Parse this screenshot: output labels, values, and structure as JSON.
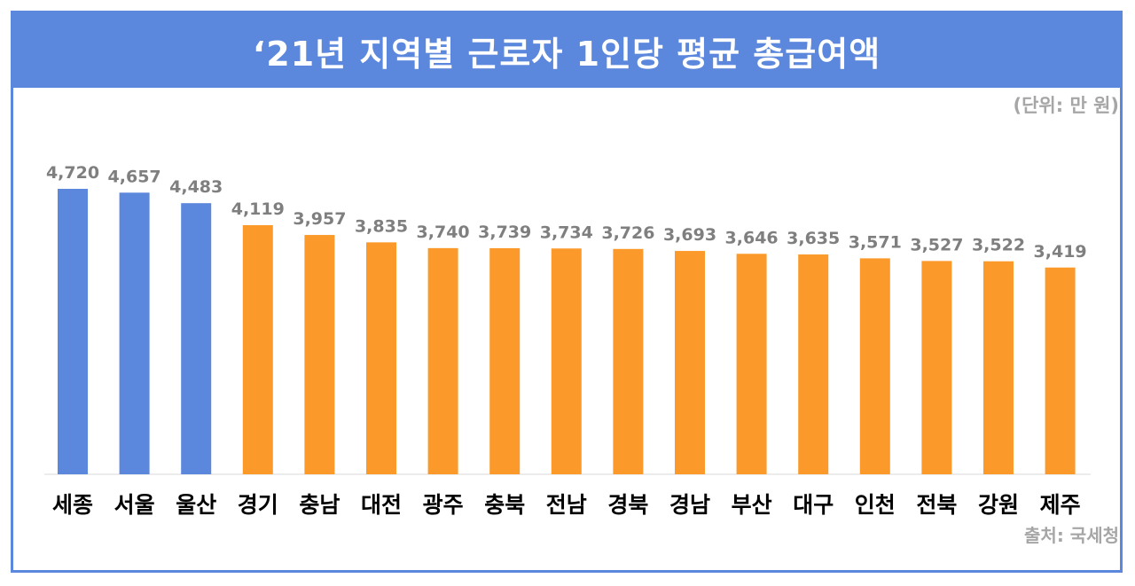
{
  "title": "‘21년 지역별 근로자 1인당 평균 총급여액",
  "unit_note": "(단위: 만 원)",
  "source_note": "출처: 국세청",
  "colors": {
    "header": "#5b87dd",
    "top_bars": "#5b87dd",
    "other_bars": "#fb9a2a",
    "value_text": "#7f7f7f"
  },
  "chart_data": {
    "type": "bar",
    "title": "‘21년 지역별 근로자 1인당 평균 총급여액",
    "xlabel": "",
    "ylabel": "",
    "ylim": [
      0,
      4720
    ],
    "grid": false,
    "legend": "none",
    "categories": [
      "세종",
      "서울",
      "울산",
      "경기",
      "충남",
      "대전",
      "광주",
      "충북",
      "전남",
      "경북",
      "경남",
      "부산",
      "대구",
      "인천",
      "전북",
      "강원",
      "제주"
    ],
    "values": [
      4720,
      4657,
      4483,
      4119,
      3957,
      3835,
      3740,
      3739,
      3734,
      3726,
      3693,
      3646,
      3635,
      3571,
      3527,
      3522,
      3419
    ],
    "value_labels": [
      "4,720",
      "4,657",
      "4,483",
      "4,119",
      "3,957",
      "3,835",
      "3,740",
      "3,739",
      "3,734",
      "3,726",
      "3,693",
      "3,646",
      "3,635",
      "3,571",
      "3,527",
      "3,522",
      "3,419"
    ],
    "highlight_count": 3
  }
}
